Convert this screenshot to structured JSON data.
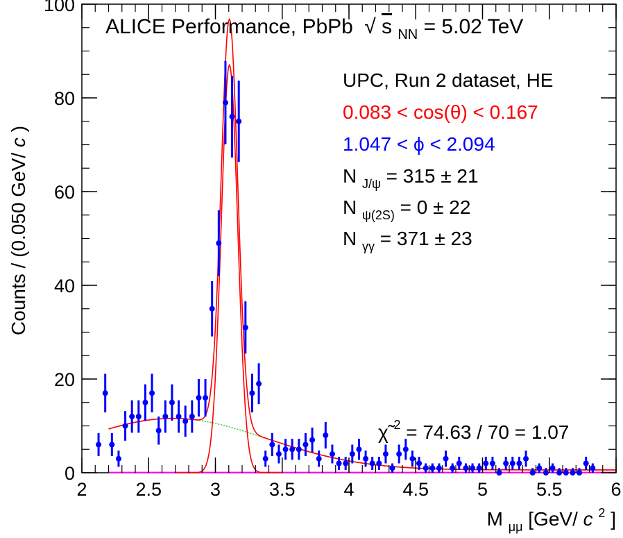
{
  "chart_data": {
    "type": "scatter",
    "title": "ALICE Performance, PbPb",
    "title_energy": {
      "root_symbol": "√",
      "symbol": "s",
      "subscript": "NN",
      "value": " = 5.02 TeV"
    },
    "xlabel": {
      "main": "M",
      "subscript": "μμ",
      "unit_open": " [GeV/",
      "unit_c": "c",
      "unit_sup": "2",
      "unit_close": "]"
    },
    "ylabel": {
      "main": "Counts / (0.050 GeV/",
      "c": "c",
      "close": ")"
    },
    "xlim": [
      2,
      6
    ],
    "ylim": [
      0,
      100
    ],
    "x_ticks": [
      2,
      2.5,
      3,
      3.5,
      4,
      4.5,
      5,
      5.5,
      6
    ],
    "x_tick_labels": [
      "2",
      "2.5",
      "3",
      "3.5",
      "4",
      "4.5",
      "5",
      "5.5",
      "6"
    ],
    "y_ticks": [
      0,
      20,
      40,
      60,
      80,
      100
    ],
    "y_tick_labels": [
      "0",
      "20",
      "40",
      "60",
      "80",
      "100"
    ],
    "annotations": {
      "dataset": "UPC, Run 2 dataset, HE",
      "cos_cut": "0.083 < cos(θ) < 0.167",
      "phi_cut": "1.047 < ϕ < 2.094",
      "n_jpsi": {
        "symbol": "N",
        "sub": "J/ψ",
        "value": " = 315 ± 21"
      },
      "n_psi2s": {
        "symbol": "N",
        "sub": "ψ(2S)",
        "value": " = 0 ± 22"
      },
      "n_gg": {
        "symbol": "N",
        "sub": "γγ",
        "value": " = 371 ± 23"
      },
      "chi2": {
        "symbol": "χ̃",
        "sup": "2",
        "value": " = 74.63 / 70 = 1.07"
      }
    },
    "colors": {
      "data": "#0000ff",
      "fit_total": "#ff0000",
      "jpsi": "#ff0000",
      "background": "#33cc33",
      "psi2s": "#ff00ff",
      "cos_text": "#ff0000",
      "phi_text": "#0000ff"
    },
    "series": [
      {
        "kind": "data",
        "x": [
          2.125,
          2.175,
          2.225,
          2.275,
          2.325,
          2.375,
          2.425,
          2.475,
          2.525,
          2.575,
          2.625,
          2.675,
          2.725,
          2.775,
          2.825,
          2.875,
          2.925,
          2.975,
          3.025,
          3.075,
          3.125,
          3.175,
          3.225,
          3.275,
          3.325,
          3.375,
          3.425,
          3.475,
          3.525,
          3.575,
          3.625,
          3.675,
          3.725,
          3.775,
          3.825,
          3.875,
          3.925,
          3.975,
          4.025,
          4.075,
          4.125,
          4.175,
          4.225,
          4.275,
          4.325,
          4.375,
          4.425,
          4.475,
          4.525,
          4.575,
          4.625,
          4.675,
          4.725,
          4.775,
          4.825,
          4.875,
          4.925,
          4.975,
          5.025,
          5.075,
          5.125,
          5.175,
          5.225,
          5.275,
          5.325,
          5.375,
          5.425,
          5.475,
          5.525,
          5.575,
          5.625,
          5.675,
          5.725,
          5.775,
          5.825
        ],
        "y": [
          6,
          17,
          6,
          3,
          10,
          12,
          12,
          15,
          17,
          9,
          12,
          15,
          12,
          11,
          12,
          16,
          16,
          35,
          49,
          79,
          76,
          75,
          31,
          17,
          19,
          3,
          6,
          4,
          5,
          5,
          5,
          6,
          7,
          3,
          8,
          4,
          2,
          2,
          4,
          5,
          3,
          2,
          2,
          4,
          1,
          4,
          5,
          3,
          2,
          1,
          1,
          1,
          3,
          1,
          2,
          1,
          1,
          1,
          2,
          2,
          0,
          2,
          2,
          2,
          3,
          0,
          1,
          0,
          1,
          0,
          0,
          0,
          0,
          2,
          1
        ]
      }
    ]
  }
}
